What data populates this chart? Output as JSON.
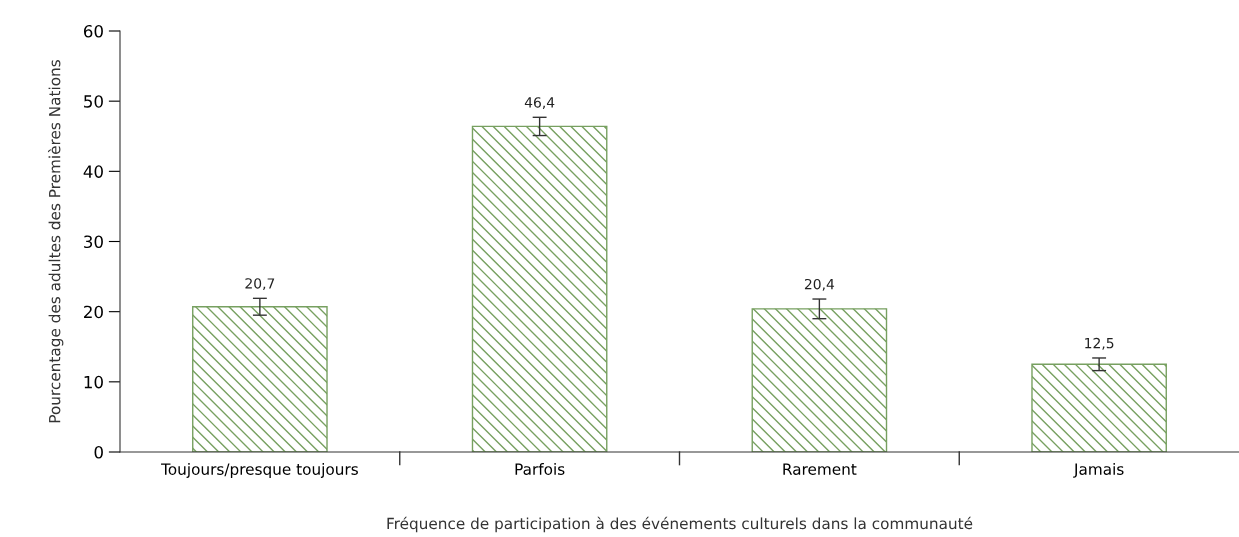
{
  "chart_data": {
    "type": "bar",
    "xlabel": "Fréquence de participation à des événements culturels dans la communauté",
    "ylabel": "Pourcentage des adultes des Premières Nations",
    "categories": [
      "Toujours/presque toujours",
      "Parfois",
      "Rarement",
      "Jamais"
    ],
    "values": [
      20.7,
      46.4,
      20.4,
      12.5
    ],
    "errors": [
      1.2,
      1.3,
      1.4,
      0.9
    ],
    "value_labels": [
      "20,7",
      "46,4",
      "20,4",
      "12,5"
    ],
    "color": "#77a060",
    "ylim": [
      0,
      60
    ],
    "yticks": [
      0,
      10,
      20,
      30,
      40,
      50,
      60
    ],
    "grid": false
  }
}
